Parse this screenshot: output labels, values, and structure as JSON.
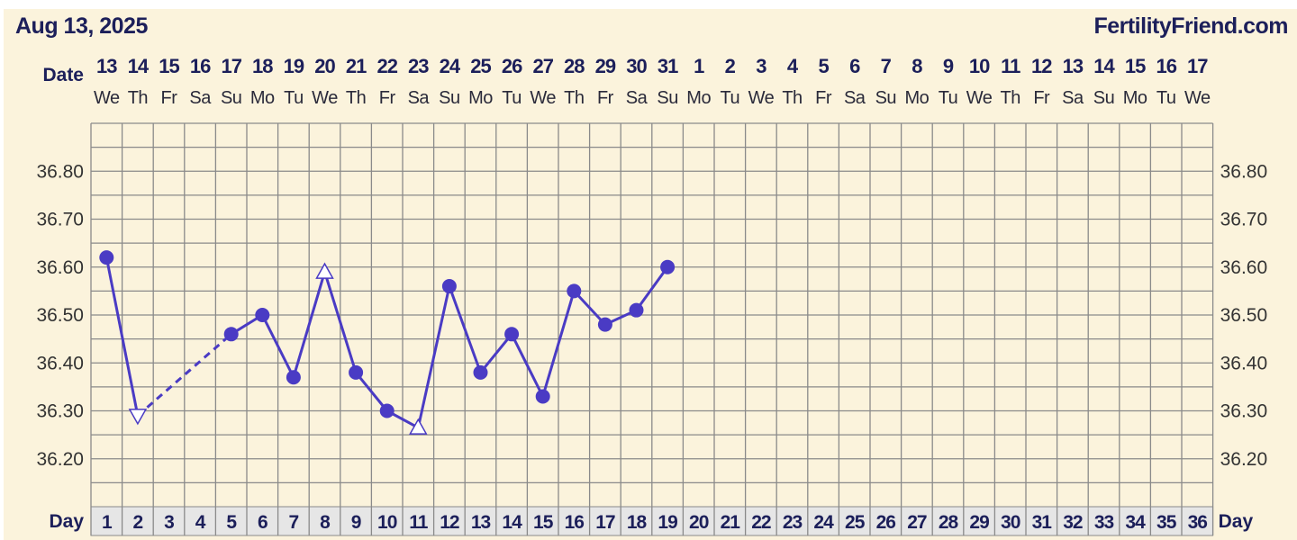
{
  "header": {
    "date": "Aug 13, 2025",
    "site": "FertilityFriend.com"
  },
  "labels": {
    "date": "Date",
    "day": "Day"
  },
  "colors": {
    "line": "#4a3bc4",
    "text": "#1c1f5a",
    "background": "#fbf3dc",
    "grid": "#8a8a8a",
    "day_row": "#e6e6e6"
  },
  "chart_data": {
    "type": "line",
    "dates": [
      "13",
      "14",
      "15",
      "16",
      "17",
      "18",
      "19",
      "20",
      "21",
      "22",
      "23",
      "24",
      "25",
      "26",
      "27",
      "28",
      "29",
      "30",
      "31",
      "1",
      "2",
      "3",
      "4",
      "5",
      "6",
      "7",
      "8",
      "9",
      "10",
      "11",
      "12",
      "13",
      "14",
      "15",
      "16",
      "17"
    ],
    "weekdays": [
      "We",
      "Th",
      "Fr",
      "Sa",
      "Su",
      "Mo",
      "Tu",
      "We",
      "Th",
      "Fr",
      "Sa",
      "Su",
      "Mo",
      "Tu",
      "We",
      "Th",
      "Fr",
      "Sa",
      "Su",
      "Mo",
      "Tu",
      "We",
      "Th",
      "Fr",
      "Sa",
      "Su",
      "Mo",
      "Tu",
      "We",
      "Th",
      "Fr",
      "Sa",
      "Su",
      "Mo",
      "Tu",
      "We"
    ],
    "days": [
      1,
      2,
      3,
      4,
      5,
      6,
      7,
      8,
      9,
      10,
      11,
      12,
      13,
      14,
      15,
      16,
      17,
      18,
      19,
      20,
      21,
      22,
      23,
      24,
      25,
      26,
      27,
      28,
      29,
      30,
      31,
      32,
      33,
      34,
      35,
      36
    ],
    "y_ticks": [
      "36.80",
      "36.70",
      "36.60",
      "36.50",
      "36.40",
      "36.30",
      "36.20"
    ],
    "ylim": [
      36.1,
      36.9
    ],
    "grid": true,
    "points": [
      {
        "day": 1,
        "value": 36.62,
        "marker": "circle"
      },
      {
        "day": 2,
        "value": 36.29,
        "marker": "triangle-down-open"
      },
      {
        "day": 5,
        "value": 36.46,
        "marker": "circle",
        "dashed_from_prev": true
      },
      {
        "day": 6,
        "value": 36.5,
        "marker": "circle"
      },
      {
        "day": 7,
        "value": 36.37,
        "marker": "circle"
      },
      {
        "day": 8,
        "value": 36.59,
        "marker": "triangle-up-open"
      },
      {
        "day": 9,
        "value": 36.38,
        "marker": "circle"
      },
      {
        "day": 10,
        "value": 36.3,
        "marker": "circle"
      },
      {
        "day": 11,
        "value": 36.265,
        "marker": "triangle-up-open"
      },
      {
        "day": 12,
        "value": 36.56,
        "marker": "circle"
      },
      {
        "day": 13,
        "value": 36.38,
        "marker": "circle"
      },
      {
        "day": 14,
        "value": 36.46,
        "marker": "circle"
      },
      {
        "day": 15,
        "value": 36.33,
        "marker": "circle"
      },
      {
        "day": 16,
        "value": 36.55,
        "marker": "circle"
      },
      {
        "day": 17,
        "value": 36.48,
        "marker": "circle"
      },
      {
        "day": 18,
        "value": 36.51,
        "marker": "circle"
      },
      {
        "day": 19,
        "value": 36.6,
        "marker": "circle"
      }
    ]
  }
}
